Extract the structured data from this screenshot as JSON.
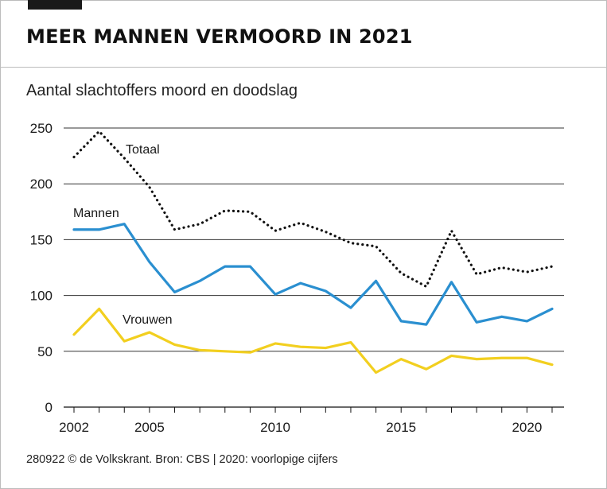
{
  "header": {
    "title": "MEER MANNEN VERMOORD IN 2021",
    "subtitle": "Aantal slachtoffers moord en doodslag"
  },
  "footer": {
    "source": "280922 © de Volkskrant. Bron: CBS | 2020: voorlopige cijfers"
  },
  "colors": {
    "totaal": "#111111",
    "mannen": "#2a8fd0",
    "vrouwen": "#f2cf1f",
    "grid": "#333333"
  },
  "chart_data": {
    "type": "line",
    "title": "MEER MANNEN VERMOORD IN 2021",
    "ylabel": "Aantal slachtoffers moord en doodslag",
    "xlabel": "",
    "ylim": [
      0,
      250
    ],
    "yticks": [
      0,
      50,
      100,
      150,
      200,
      250
    ],
    "xlim": [
      2002,
      2021
    ],
    "xticks": [
      2002,
      2005,
      2010,
      2015,
      2020
    ],
    "x": [
      2002,
      2003,
      2004,
      2005,
      2006,
      2007,
      2008,
      2009,
      2010,
      2011,
      2012,
      2013,
      2014,
      2015,
      2016,
      2017,
      2018,
      2019,
      2020,
      2021
    ],
    "series": [
      {
        "name": "Totaal",
        "key": "totaal",
        "style": "dotted",
        "values": [
          224,
          247,
          223,
          197,
          159,
          164,
          176,
          175,
          158,
          165,
          157,
          147,
          144,
          120,
          108,
          158,
          119,
          125,
          121,
          126
        ]
      },
      {
        "name": "Mannen",
        "key": "mannen",
        "style": "solid",
        "values": [
          159,
          159,
          164,
          130,
          103,
          113,
          126,
          126,
          101,
          111,
          104,
          89,
          113,
          77,
          74,
          112,
          76,
          81,
          77,
          88
        ]
      },
      {
        "name": "Vrouwen",
        "key": "vrouwen",
        "style": "solid",
        "values": [
          65,
          88,
          59,
          67,
          56,
          51,
          50,
          49,
          57,
          54,
          53,
          58,
          31,
          43,
          34,
          46,
          43,
          44,
          44,
          38
        ]
      }
    ]
  }
}
